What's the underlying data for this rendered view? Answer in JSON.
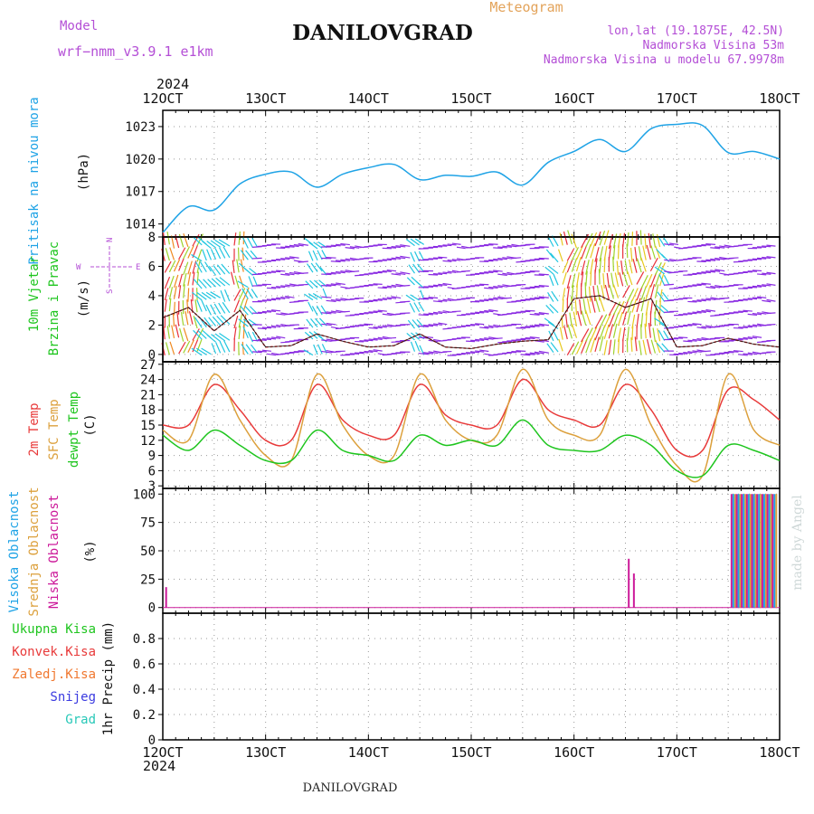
{
  "header": {
    "model_label": "Model",
    "model_name": "wrf−nmm_v3.9.1  e1km",
    "title": "DANILOVGRAD",
    "meteogram": "Meteogram",
    "lonlat": "lon,lat (19.1875E, 42.5N)",
    "elevation": "Nadmorska Visina 53m",
    "model_elevation": "Nadmorska Visina u modelu 67.9978m"
  },
  "footer": {
    "station": "DANILOVGRAD",
    "credit": "made by Angel"
  },
  "x_axis": {
    "year": "2024",
    "labels": [
      "12OCT",
      "13OCT",
      "14OCT",
      "15OCT",
      "16OCT",
      "17OCT",
      "18OCT"
    ]
  },
  "panels": {
    "pressure": {
      "label": "Pritisak na nivou mora",
      "unit": "(hPa)",
      "ticks": [
        "1014",
        "1017",
        "1020",
        "1023"
      ]
    },
    "wind": {
      "label_1": "10m Vjetar",
      "label_2": "Brzina i Pravac",
      "unit": "(m/s)",
      "ticks": [
        "0",
        "2",
        "4",
        "6",
        "8"
      ],
      "compass": {
        "n": "N",
        "s": "S",
        "e": "E",
        "w": "W"
      }
    },
    "temperature": {
      "label_1": "2m Temp",
      "label_2": "SFC Temp",
      "label_3": "dewpt Temp",
      "unit": "(C)",
      "ticks": [
        "3",
        "6",
        "9",
        "12",
        "15",
        "18",
        "21",
        "24",
        "27"
      ]
    },
    "cloud": {
      "label_1": "Visoka Oblacnost",
      "label_2": "Srednja Oblacnost",
      "label_3": "Niska Oblacnost",
      "unit": "(%)",
      "ticks": [
        "0",
        "25",
        "50",
        "75",
        "100"
      ]
    },
    "precip": {
      "legend": [
        "Ukupna Kisa",
        "Konvek.Kisa",
        "Zaledj.Kisa",
        "Snijeg",
        "Grad"
      ],
      "axis_label": "1hr Precip (mm)",
      "ticks": [
        "0",
        "0.2",
        "0.4",
        "0.6",
        "0.8"
      ]
    }
  },
  "colors": {
    "purple": "#b44fd6",
    "orange": "#e3a35a",
    "blue": "#1fa3e6",
    "green": "#1ec51e",
    "red": "#e83a3a",
    "tan": "#dca03c",
    "magenta": "#cc1a9a",
    "precip_orange": "#f07830",
    "snow": "#3a3ae0",
    "hail": "#28c8b8"
  },
  "chart_data": [
    {
      "type": "line",
      "title": "Pritisak na nivou mora",
      "ylabel": "(hPa)",
      "x_days": [
        12,
        12.25,
        12.5,
        12.75,
        13,
        13.25,
        13.5,
        13.75,
        14,
        14.25,
        14.5,
        14.75,
        15,
        15.25,
        15.5,
        15.75,
        16,
        16.25,
        16.5,
        16.75,
        17,
        17.25,
        17.5,
        17.75,
        18
      ],
      "series": [
        {
          "values": [
            1013.2,
            1015.6,
            1015.3,
            1017.7,
            1018.6,
            1018.8,
            1017.4,
            1018.6,
            1019.2,
            1019.5,
            1018.1,
            1018.5,
            1018.4,
            1018.8,
            1017.6,
            1019.7,
            1020.7,
            1021.8,
            1020.7,
            1022.8,
            1023.2,
            1023.1,
            1020.6,
            1020.7,
            1020.0
          ]
        }
      ],
      "ylim": [
        1012.8,
        1024.5
      ]
    },
    {
      "type": "line",
      "title": "10m Vjetar Brzina i Pravac",
      "ylabel": "(m/s)",
      "x_days": [
        12,
        12.25,
        12.5,
        12.75,
        13,
        13.25,
        13.5,
        13.75,
        14,
        14.25,
        14.5,
        14.75,
        15,
        15.25,
        15.5,
        15.75,
        16,
        16.25,
        16.5,
        16.75,
        17,
        17.25,
        17.5,
        17.75,
        18
      ],
      "series": [
        {
          "values": [
            2.5,
            3.2,
            1.6,
            3.0,
            0.5,
            0.6,
            1.4,
            0.9,
            0.5,
            0.6,
            1.4,
            0.5,
            0.4,
            0.7,
            0.9,
            1.0,
            3.8,
            4.0,
            3.2,
            3.8,
            0.5,
            0.6,
            1.1,
            0.7,
            0.5
          ]
        }
      ],
      "ylim": [
        -0.5,
        8
      ]
    },
    {
      "type": "line",
      "title": "2m Temp / SFC Temp / dewpt Temp",
      "ylabel": "(C)",
      "x_days": [
        12,
        12.25,
        12.5,
        12.75,
        13,
        13.25,
        13.5,
        13.75,
        14,
        14.25,
        14.5,
        14.75,
        15,
        15.25,
        15.5,
        15.75,
        16,
        16.25,
        16.5,
        16.75,
        17,
        17.25,
        17.5,
        17.75,
        18
      ],
      "series": [
        {
          "name": "2m Temp",
          "values": [
            15,
            15,
            23,
            18,
            12,
            12,
            23,
            16,
            13,
            13,
            23,
            17,
            15,
            15,
            24,
            18,
            16,
            15,
            23,
            18,
            10,
            10,
            22,
            20,
            16
          ]
        },
        {
          "name": "SFC Temp",
          "values": [
            14,
            12,
            25,
            16,
            9,
            8,
            25,
            15,
            9,
            9,
            25,
            16,
            12,
            13,
            26,
            16,
            13,
            13,
            26,
            15,
            7,
            5,
            25,
            14,
            11
          ]
        },
        {
          "name": "dewpt Temp",
          "values": [
            13,
            10,
            14,
            11,
            8,
            8,
            14,
            10,
            9,
            8,
            13,
            11,
            12,
            11,
            16,
            11,
            10,
            10,
            13,
            11,
            6,
            5,
            11,
            10,
            8
          ]
        }
      ],
      "ylim": [
        2.5,
        27.5
      ]
    },
    {
      "type": "bar",
      "title": "Oblacnost",
      "ylabel": "(%)",
      "x_days": [
        12.05,
        16.55,
        16.6,
        17.55,
        17.6,
        17.65,
        17.7,
        17.75,
        17.8,
        17.85,
        17.9,
        17.95
      ],
      "series": [
        {
          "name": "Niska Oblacnost",
          "values": [
            18,
            43,
            30,
            100,
            100,
            100,
            100,
            100,
            100,
            100,
            100,
            100
          ]
        },
        {
          "name": "Visoka Oblacnost",
          "values": [
            0,
            0,
            0,
            100,
            100,
            100,
            100,
            100,
            100,
            100,
            100,
            100
          ]
        },
        {
          "name": "Srednja Oblacnost",
          "values": [
            0,
            0,
            0,
            100,
            100,
            100,
            100,
            100,
            100,
            100,
            100,
            100
          ]
        }
      ],
      "ylim": [
        -5,
        105
      ]
    },
    {
      "type": "bar",
      "title": "1hr Precip",
      "ylabel": "1hr Precip (mm)",
      "x_days": [
        12,
        18
      ],
      "series": [
        {
          "name": "Ukupna Kisa",
          "values": [
            0,
            0
          ]
        }
      ],
      "ylim": [
        0,
        1
      ]
    }
  ]
}
